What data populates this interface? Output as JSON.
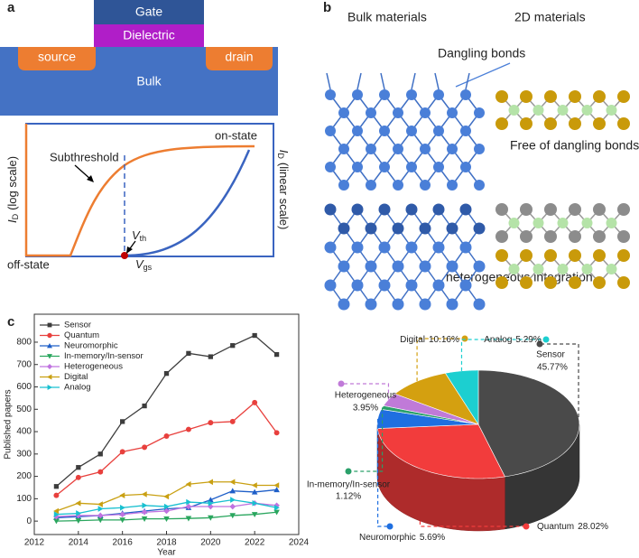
{
  "panel_a": {
    "label": "a",
    "gate": "Gate",
    "dielectric": "Dielectric",
    "source": "source",
    "drain": "drain",
    "bulk": "Bulk",
    "subthreshold": "Subthreshold",
    "on_state": "on-state",
    "off_state": "off-state",
    "y_left": {
      "symbol": "I",
      "subscript": "D",
      "text": "(log scale)"
    },
    "y_right": {
      "symbol": "I",
      "subscript": "D",
      "text": "(linear scale)"
    },
    "vth": {
      "symbol": "V",
      "subscript": "th"
    },
    "vgs": {
      "symbol": "V",
      "subscript": "gs"
    }
  },
  "panel_b": {
    "label": "b",
    "bulk_title": "Bulk materials",
    "two_d_title": "2D materials",
    "dangling": "Dangling bonds",
    "free": "Free of dangling bonds",
    "hetero": "heterogeneous integration"
  },
  "chart_data": [
    {
      "type": "line",
      "panel_label": "c",
      "xlabel": "Year",
      "ylabel": "Published papers",
      "x": [
        2013,
        2014,
        2015,
        2016,
        2017,
        2018,
        2019,
        2020,
        2021,
        2022,
        2023
      ],
      "xlim": [
        2012,
        2024
      ],
      "xticks": [
        2012,
        2014,
        2016,
        2018,
        2020,
        2022,
        2024
      ],
      "ylim": [
        -60,
        925
      ],
      "yticks": [
        0,
        100,
        200,
        300,
        400,
        500,
        600,
        700,
        800
      ],
      "legend": "upper left",
      "series": [
        {
          "name": "Sensor",
          "color": "#3d3d3d",
          "marker": "square",
          "values": [
            155,
            240,
            300,
            445,
            515,
            660,
            750,
            735,
            785,
            830,
            745
          ]
        },
        {
          "name": "Quantum",
          "color": "#e8403d",
          "marker": "circle",
          "values": [
            115,
            195,
            220,
            310,
            330,
            380,
            410,
            440,
            445,
            530,
            395
          ]
        },
        {
          "name": "Neuromorphic",
          "color": "#1f5fc8",
          "marker": "triangle-up",
          "values": [
            15,
            20,
            25,
            35,
            45,
            55,
            60,
            95,
            135,
            130,
            140
          ]
        },
        {
          "name": "In-memory/In-sensor",
          "color": "#2aa65e",
          "marker": "triangle-down",
          "values": [
            0,
            2,
            5,
            5,
            10,
            10,
            12,
            15,
            25,
            30,
            40
          ]
        },
        {
          "name": "Heterogeneous",
          "color": "#c073e0",
          "marker": "diamond",
          "values": [
            20,
            25,
            25,
            30,
            40,
            45,
            65,
            65,
            65,
            80,
            70
          ]
        },
        {
          "name": "Digital",
          "color": "#c9a012",
          "marker": "triangle-left",
          "values": [
            45,
            80,
            75,
            115,
            120,
            110,
            165,
            175,
            175,
            160,
            160
          ]
        },
        {
          "name": "Analog",
          "color": "#19c0d0",
          "marker": "triangle-right",
          "values": [
            30,
            35,
            55,
            60,
            70,
            65,
            85,
            80,
            95,
            80,
            60
          ]
        }
      ]
    },
    {
      "type": "pie",
      "categories": [
        "Sensor",
        "Quantum",
        "Neuromorphic",
        "In-memory/In-sensor",
        "Heterogeneous",
        "Digital",
        "Analog"
      ],
      "values": [
        45.77,
        28.02,
        5.69,
        1.12,
        3.95,
        10.16,
        5.29
      ],
      "value_labels": [
        "45.77%",
        "28.02%",
        "5.69%",
        "1.12%",
        "3.95%",
        "10.16%",
        "5.29%"
      ],
      "colors": [
        "#4a4a4a",
        "#f23c3c",
        "#1f6fe0",
        "#2aa06a",
        "#c07ad8",
        "#d4a010",
        "#1ccfd0"
      ]
    }
  ]
}
